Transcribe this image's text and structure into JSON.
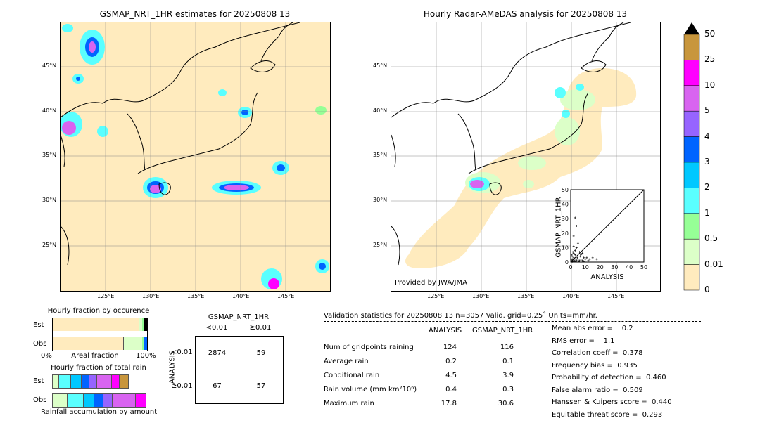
{
  "maps": [
    {
      "title": "GSMAP_NRT_1HR estimates for 20250808 13",
      "lon_ticks": [
        "125°E",
        "130°E",
        "135°E",
        "140°E",
        "145°E"
      ],
      "lat_ticks": [
        "45°N",
        "40°N",
        "35°N",
        "30°N",
        "25°N"
      ],
      "credit": ""
    },
    {
      "title": "Hourly Radar-AMeDAS analysis for 20250808 13",
      "lon_ticks": [
        "125°E",
        "130°E",
        "135°E",
        "140°E",
        "145°E"
      ],
      "lat_ticks": [
        "45°N",
        "40°N",
        "35°N",
        "30°N",
        "25°N"
      ],
      "credit": "Provided by JWA/JMA"
    }
  ],
  "colorbar": {
    "labels": [
      "50",
      "25",
      "10",
      "5",
      "4",
      "3",
      "2",
      "1",
      "0.5",
      "0.01",
      "0"
    ],
    "colors": [
      "#c8963c",
      "#ff00ff",
      "#d864f0",
      "#9664ff",
      "#0064ff",
      "#00c8ff",
      "#5affff",
      "#96ff96",
      "#dcffc8",
      "#ffebbe"
    ],
    "over_color": "#000000"
  },
  "fraction_occurrence": {
    "title": "Hourly fraction by occurence",
    "row_labels": [
      "Est",
      "Obs"
    ],
    "xlabel_left": "0%",
    "xlabel_mid": "Areal fraction",
    "xlabel_right": "100%"
  },
  "fraction_total": {
    "title": "Hourly fraction of total rain",
    "row_labels": [
      "Est",
      "Obs"
    ],
    "xlabel": "Rainfall accumulation by amount"
  },
  "contingency": {
    "title": "GSMAP_NRT_1HR",
    "col_labels": [
      "<0.01",
      "≥0.01"
    ],
    "row_axis": "ANALYSIS",
    "row_labels": [
      "<0.01",
      "≥0.01"
    ],
    "cells": [
      [
        "2874",
        "59"
      ],
      [
        "67",
        "57"
      ]
    ]
  },
  "validation": {
    "header": "Validation statistics for 20250808 13  n=3057 Valid. grid=0.25˚ Units=mm/hr.",
    "col_analysis": "ANALYSIS",
    "col_gsmap": "GSMAP_NRT_1HR",
    "rows": [
      {
        "label": "Num of gridpoints raining",
        "analysis": "124",
        "gsmap": "116"
      },
      {
        "label": "Average rain",
        "analysis": "0.2",
        "gsmap": "0.1"
      },
      {
        "label": "Conditional rain",
        "analysis": "4.5",
        "gsmap": "3.9"
      },
      {
        "label": "Rain volume (mm km²10⁶)",
        "analysis": "0.4",
        "gsmap": "0.3"
      },
      {
        "label": "Maximum rain",
        "analysis": "17.8",
        "gsmap": "30.6"
      }
    ],
    "scores": [
      "Mean abs error =    0.2",
      "RMS error =    1.1",
      "Correlation coeff =  0.378",
      "Frequency bias =  0.935",
      "Probability of detection =  0.460",
      "False alarm ratio =  0.509",
      "Hanssen & Kuipers score =  0.440",
      "Equitable threat score =  0.293"
    ]
  },
  "chart_data": {
    "type": "scatter",
    "title": "",
    "xlabel": "ANALYSIS",
    "ylabel": "GSMAP_NRT_1HR",
    "xlim": [
      0,
      50
    ],
    "ylim": [
      0,
      50
    ],
    "x_ticks": [
      "0",
      "10",
      "20",
      "30",
      "40",
      "50"
    ],
    "y_ticks": [
      "0",
      "10",
      "20",
      "30",
      "40",
      "50"
    ],
    "points": [
      [
        0.5,
        1
      ],
      [
        1,
        2
      ],
      [
        1.5,
        0.5
      ],
      [
        2,
        3
      ],
      [
        2.5,
        1
      ],
      [
        3,
        0.5
      ],
      [
        3.5,
        2
      ],
      [
        4,
        1
      ],
      [
        4.5,
        3
      ],
      [
        5,
        2
      ],
      [
        5.5,
        0.5
      ],
      [
        6,
        1
      ],
      [
        6.5,
        4
      ],
      [
        7,
        2
      ],
      [
        8,
        1
      ],
      [
        9,
        0.5
      ],
      [
        10,
        2
      ],
      [
        11,
        3
      ],
      [
        12,
        1
      ],
      [
        13,
        2
      ],
      [
        15,
        3
      ],
      [
        17.8,
        2
      ],
      [
        1,
        4
      ],
      [
        2,
        6
      ],
      [
        3,
        8
      ],
      [
        4,
        10
      ],
      [
        3,
        30.6
      ],
      [
        4,
        25
      ],
      [
        2,
        18
      ],
      [
        5,
        13
      ],
      [
        1,
        0.3
      ],
      [
        0.3,
        2
      ],
      [
        8,
        6
      ],
      [
        9,
        3
      ],
      [
        6,
        7
      ],
      [
        7,
        5
      ],
      [
        2,
        11
      ],
      [
        3,
        5
      ],
      [
        1.5,
        7
      ],
      [
        0.5,
        5
      ]
    ]
  }
}
